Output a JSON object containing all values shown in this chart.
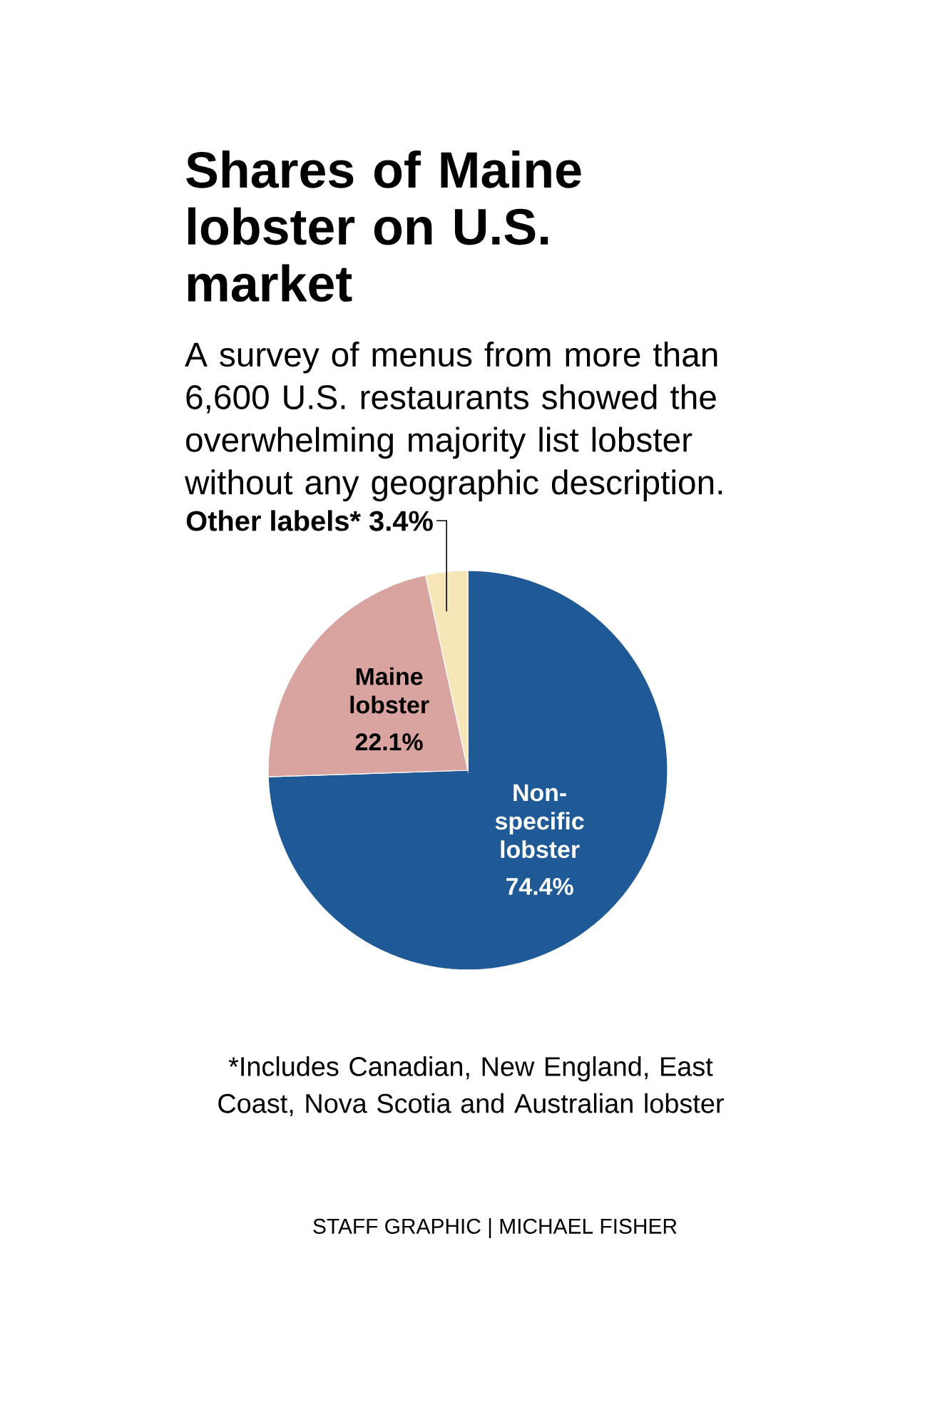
{
  "chart_data": {
    "type": "pie",
    "title": "Shares of Maine lobster on U.S. market",
    "subtitle": "A survey of menus from more than 6,600 U.S. restaurants showed the overwhelming majority list lobster without any geographic description.",
    "categories": [
      "Non-specific lobster",
      "Maine lobster",
      "Other labels*"
    ],
    "values": [
      74.4,
      22.1,
      3.4
    ],
    "value_labels": [
      "74.4%",
      "22.1%",
      "3.4%"
    ],
    "colors": [
      "#1f5a96",
      "#d9a3a0",
      "#f7e6b8"
    ],
    "annotations": [
      "*Includes Canadian, New England, East Coast, Nova Scotia and Australian lobster",
      "STAFF GRAPHIC | MICHAEL FISHER"
    ]
  }
}
